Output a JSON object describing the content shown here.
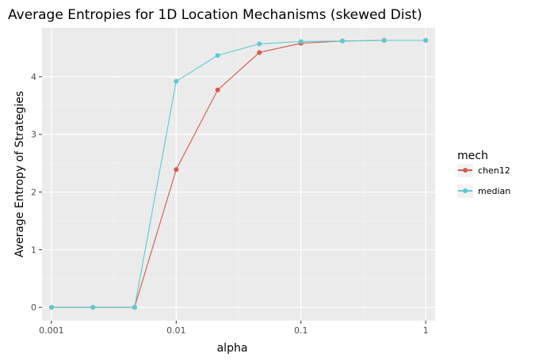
{
  "chart_data": {
    "type": "line",
    "title": "Average Entropies for 1D Location Mechanisms (skewed Dist)",
    "xlabel": "alpha",
    "ylabel": "Average Entropy of Strategies",
    "x_scale": "log10",
    "xlim": [
      0.00084,
      1.19
    ],
    "ylim": [
      -0.23,
      4.85
    ],
    "x_ticks": [
      0.001,
      0.01,
      0.1,
      1
    ],
    "x_tick_labels": [
      "0.001",
      "0.01",
      "0.1",
      "1"
    ],
    "y_ticks": [
      0,
      1,
      2,
      3,
      4
    ],
    "y_tick_labels": [
      "0",
      "1",
      "2",
      "3",
      "4"
    ],
    "grid": true,
    "legend": {
      "title": "mech",
      "position": "right"
    },
    "x": [
      0.001,
      0.00215,
      0.00464,
      0.01,
      0.0215,
      0.0464,
      0.1,
      0.215,
      0.464,
      1
    ],
    "series": [
      {
        "name": "chen12",
        "color": "#d3594c",
        "values": [
          0,
          0,
          0,
          2.39,
          3.77,
          4.42,
          4.58,
          4.62,
          4.63,
          4.63
        ]
      },
      {
        "name": "median",
        "color": "#5bcbd2",
        "values": [
          0,
          0,
          0,
          3.92,
          4.37,
          4.57,
          4.61,
          4.62,
          4.63,
          4.63
        ]
      }
    ]
  }
}
